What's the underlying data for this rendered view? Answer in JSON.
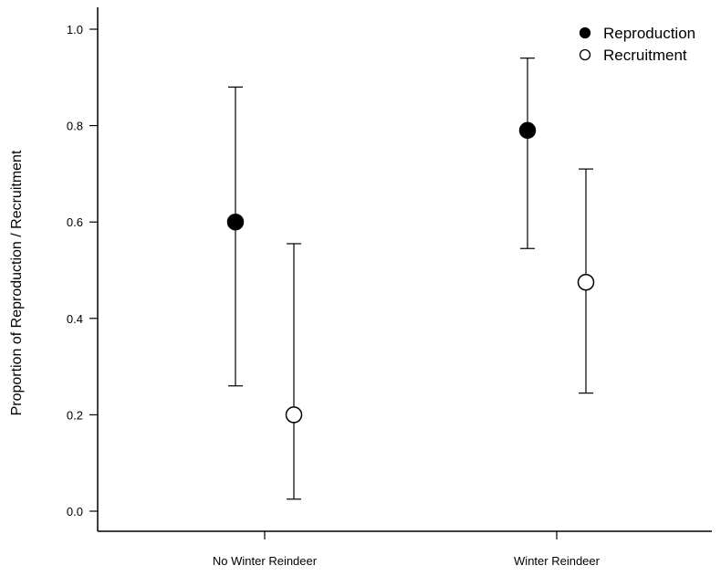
{
  "chart_data": {
    "type": "scatter",
    "categories": [
      "No Winter Reindeer",
      "Winter Reindeer"
    ],
    "ylabel": "Proportion of Reproduction / Recruitment",
    "xlabel": "",
    "ylim": [
      -0.04,
      1.05
    ],
    "yticks": [
      "0.0",
      "0.2",
      "0.4",
      "0.6",
      "0.8",
      "1.0"
    ],
    "grid": false,
    "legend_position": "top-right",
    "series": [
      {
        "name": "Reproduction",
        "marker": "filled-circle",
        "color": "#000000",
        "values": [
          0.6,
          0.79
        ],
        "lower": [
          0.26,
          0.545
        ],
        "upper": [
          0.88,
          0.94
        ]
      },
      {
        "name": "Recruitment",
        "marker": "open-circle",
        "color": "#ffffff",
        "values": [
          0.2,
          0.475
        ],
        "lower": [
          0.025,
          0.245
        ],
        "upper": [
          0.555,
          0.71
        ]
      }
    ]
  }
}
